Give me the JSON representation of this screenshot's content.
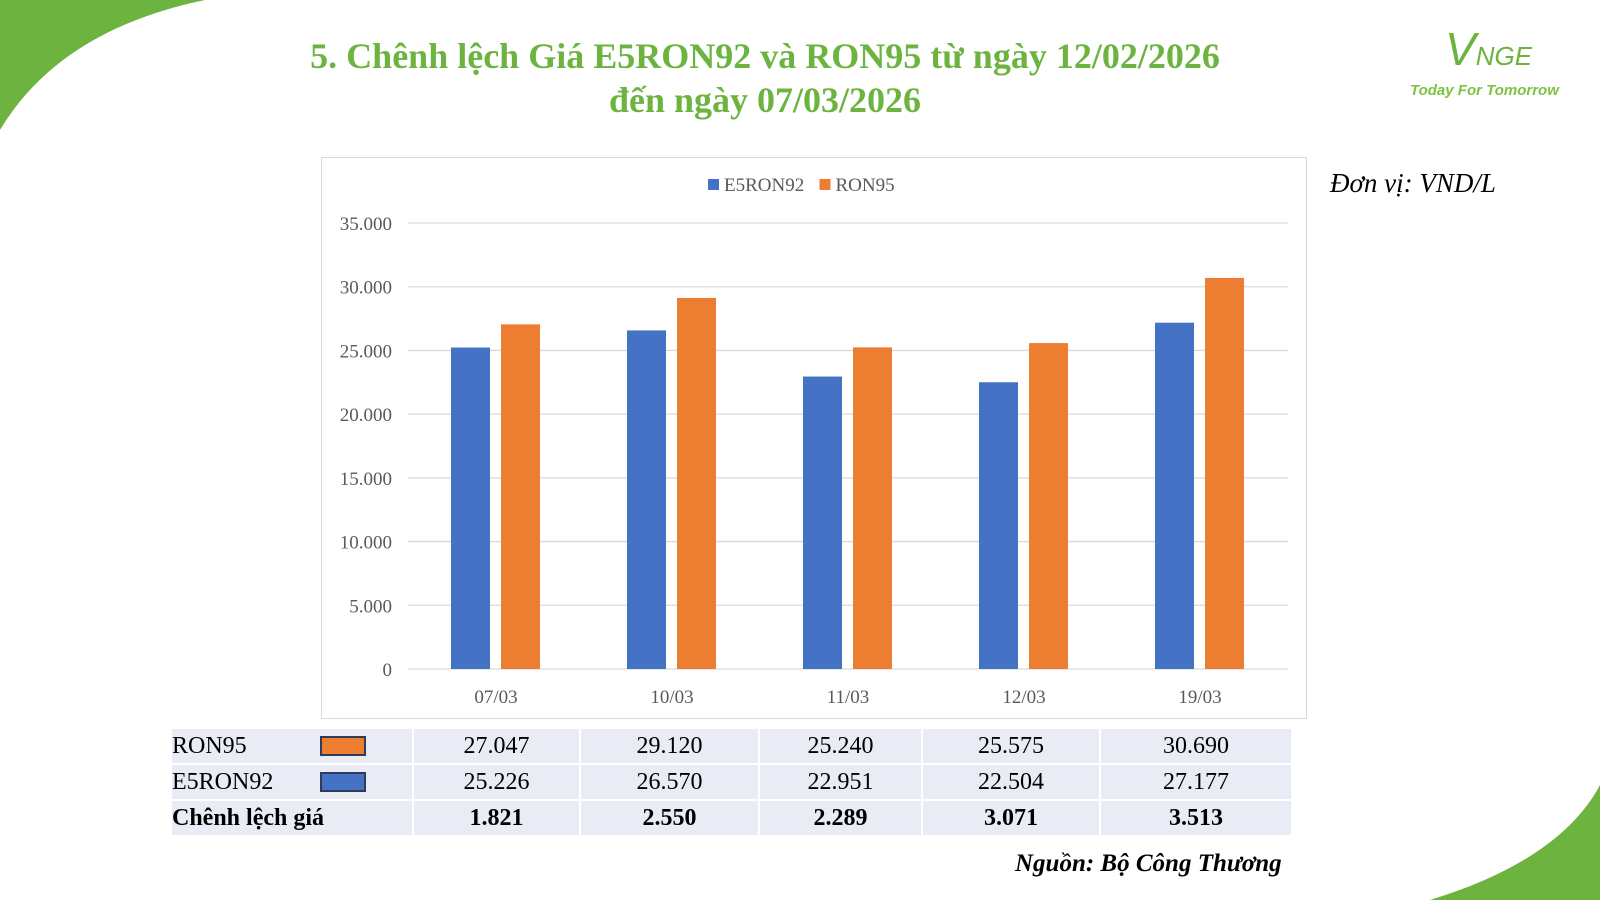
{
  "title_line1": "5. Chênh lệch Giá E5RON92 và RON95 từ ngày 12/02/2026",
  "title_line2": "đến ngày 07/03/2026",
  "logo": {
    "brand": "VNGE",
    "tagline": "Today For Tomorrow"
  },
  "unit": "Đơn vị: VND/L",
  "source": "Nguồn: Bộ Công Thương",
  "chart_data": {
    "type": "bar",
    "categories": [
      "07/03",
      "10/03",
      "11/03",
      "12/03",
      "19/03"
    ],
    "series": [
      {
        "name": "E5RON92",
        "color": "#4472c4",
        "values": [
          25226,
          26570,
          22951,
          22504,
          27177
        ]
      },
      {
        "name": "RON95",
        "color": "#ed7d31",
        "values": [
          27047,
          29120,
          25240,
          25575,
          30690
        ]
      }
    ],
    "ylim": [
      0,
      35000
    ],
    "yticks": [
      "0",
      "5.000",
      "10.000",
      "15.000",
      "20.000",
      "25.000",
      "30.000",
      "35.000"
    ],
    "grid": true,
    "legend": "top"
  },
  "table": {
    "rows": [
      {
        "label": "RON95",
        "color": "#ed7d31",
        "values": [
          "27.047",
          "29.120",
          "25.240",
          "25.575",
          "30.690"
        ]
      },
      {
        "label": "E5RON92",
        "color": "#4472c4",
        "values": [
          "25.226",
          "26.570",
          "22.951",
          "22.504",
          "27.177"
        ]
      },
      {
        "label": "Chênh lệch giá",
        "values": [
          "1.821",
          "2.550",
          "2.289",
          "3.071",
          "3.513"
        ]
      }
    ]
  }
}
